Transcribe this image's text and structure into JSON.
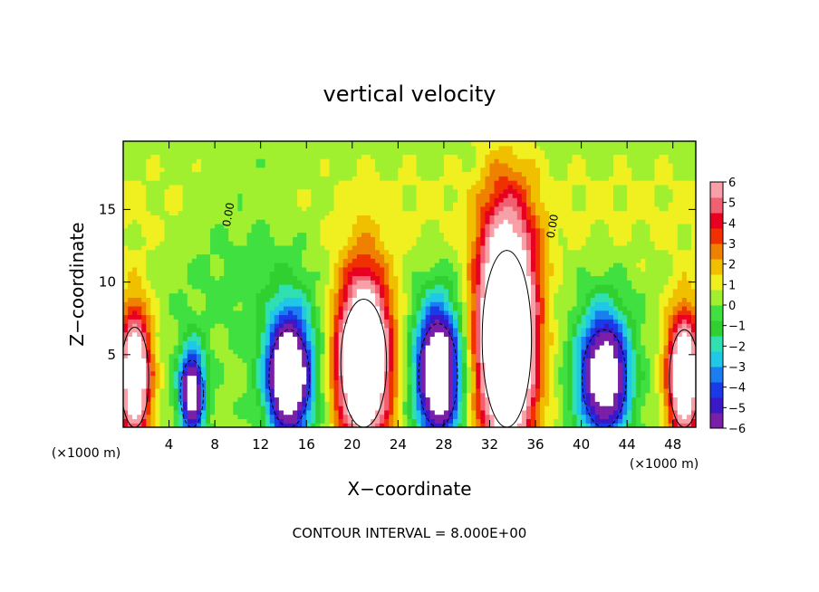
{
  "chart_data": {
    "type": "heatmap",
    "title": "vertical velocity",
    "xlabel": "X−coordinate",
    "ylabel": "Z−coordinate",
    "x_unit_left": "(×1000 m)",
    "x_unit_right": "(×1000 m)",
    "footer": "CONTOUR INTERVAL = 8.000E+00",
    "xlim": [
      0,
      50
    ],
    "ylim": [
      0,
      19.7
    ],
    "x_ticks": [
      {
        "value": 4,
        "label": "4"
      },
      {
        "value": 8,
        "label": "8"
      },
      {
        "value": 12,
        "label": "12"
      },
      {
        "value": 16,
        "label": "16"
      },
      {
        "value": 20,
        "label": "20"
      },
      {
        "value": 24,
        "label": "24"
      },
      {
        "value": 28,
        "label": "28"
      },
      {
        "value": 32,
        "label": "32"
      },
      {
        "value": 36,
        "label": "36"
      },
      {
        "value": 40,
        "label": "40"
      },
      {
        "value": 44,
        "label": "44"
      },
      {
        "value": 48,
        "label": "48"
      }
    ],
    "y_ticks": [
      {
        "value": 5,
        "label": "5"
      },
      {
        "value": 10,
        "label": "10"
      },
      {
        "value": 15,
        "label": "15"
      }
    ],
    "colorbar": {
      "range": [
        -6,
        6
      ],
      "labels": [
        {
          "value": 6,
          "label": "6"
        },
        {
          "value": 5,
          "label": "5"
        },
        {
          "value": 4,
          "label": "4"
        },
        {
          "value": 3,
          "label": "3"
        },
        {
          "value": 2,
          "label": "2"
        },
        {
          "value": 1,
          "label": "1"
        },
        {
          "value": 0,
          "label": "0"
        },
        {
          "value": -1,
          "label": "−1"
        },
        {
          "value": -2,
          "label": "−2"
        },
        {
          "value": -3,
          "label": "−3"
        },
        {
          "value": -4,
          "label": "−4"
        },
        {
          "value": -5,
          "label": "−5"
        },
        {
          "value": -6,
          "label": "−6"
        }
      ],
      "colors": [
        "#7a1fa8",
        "#3a18c8",
        "#1a3ae8",
        "#1a7ef0",
        "#20c8e8",
        "#30e0b0",
        "#30d030",
        "#40e040",
        "#a0f030",
        "#f0f020",
        "#f0c000",
        "#f08000",
        "#f03000",
        "#e80020",
        "#f06070",
        "#f8a0a8"
      ]
    },
    "contour_labels": [
      {
        "x": 9.5,
        "y": 14.6,
        "label": "0.00"
      },
      {
        "x": 37.8,
        "y": 13.8,
        "label": "0.00"
      }
    ],
    "cells": [
      {
        "center_x": 1.0,
        "width": 3.2,
        "peak": 9,
        "top": 8.2
      },
      {
        "center_x": 6.0,
        "width": 2.6,
        "peak": -8,
        "top": 5.5
      },
      {
        "center_x": 14.5,
        "width": 4.6,
        "peak": -10,
        "top": 8.0
      },
      {
        "center_x": 21.0,
        "width": 5.2,
        "peak": 12,
        "top": 10.5
      },
      {
        "center_x": 27.5,
        "width": 4.4,
        "peak": -10,
        "top": 8.5
      },
      {
        "center_x": 33.5,
        "width": 5.6,
        "peak": 14,
        "top": 14.5
      },
      {
        "center_x": 42.0,
        "width": 5.0,
        "peak": -9,
        "top": 8.0
      },
      {
        "center_x": 49.0,
        "width": 3.4,
        "peak": 9,
        "top": 8.0
      }
    ]
  }
}
